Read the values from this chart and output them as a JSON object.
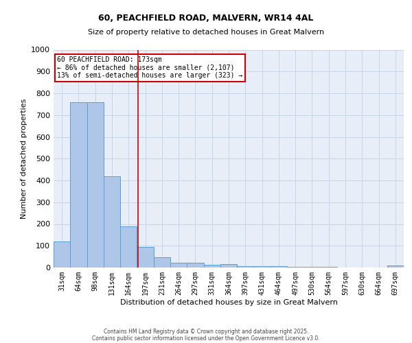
{
  "title1": "60, PEACHFIELD ROAD, MALVERN, WR14 4AL",
  "title2": "Size of property relative to detached houses in Great Malvern",
  "xlabel": "Distribution of detached houses by size in Great Malvern",
  "ylabel": "Number of detached properties",
  "categories": [
    "31sqm",
    "64sqm",
    "98sqm",
    "131sqm",
    "164sqm",
    "197sqm",
    "231sqm",
    "264sqm",
    "297sqm",
    "331sqm",
    "364sqm",
    "397sqm",
    "431sqm",
    "464sqm",
    "497sqm",
    "530sqm",
    "564sqm",
    "597sqm",
    "630sqm",
    "664sqm",
    "697sqm"
  ],
  "values": [
    120,
    758,
    758,
    420,
    190,
    95,
    48,
    22,
    22,
    14,
    15,
    5,
    5,
    5,
    2,
    2,
    2,
    0,
    0,
    0,
    8
  ],
  "bar_color": "#aec6e8",
  "bar_edge_color": "#5a9fd4",
  "bar_width": 1.0,
  "vline_x": 4.57,
  "vline_color": "#cc0000",
  "annotation_text": "60 PEACHFIELD ROAD: 173sqm\n← 86% of detached houses are smaller (2,107)\n13% of semi-detached houses are larger (323) →",
  "ylim": [
    0,
    1000
  ],
  "yticks": [
    0,
    100,
    200,
    300,
    400,
    500,
    600,
    700,
    800,
    900,
    1000
  ],
  "grid_color": "#c8d4e8",
  "bg_color": "#e8eef8",
  "footer1": "Contains HM Land Registry data © Crown copyright and database right 2025.",
  "footer2": "Contains public sector information licensed under the Open Government Licence v3.0."
}
